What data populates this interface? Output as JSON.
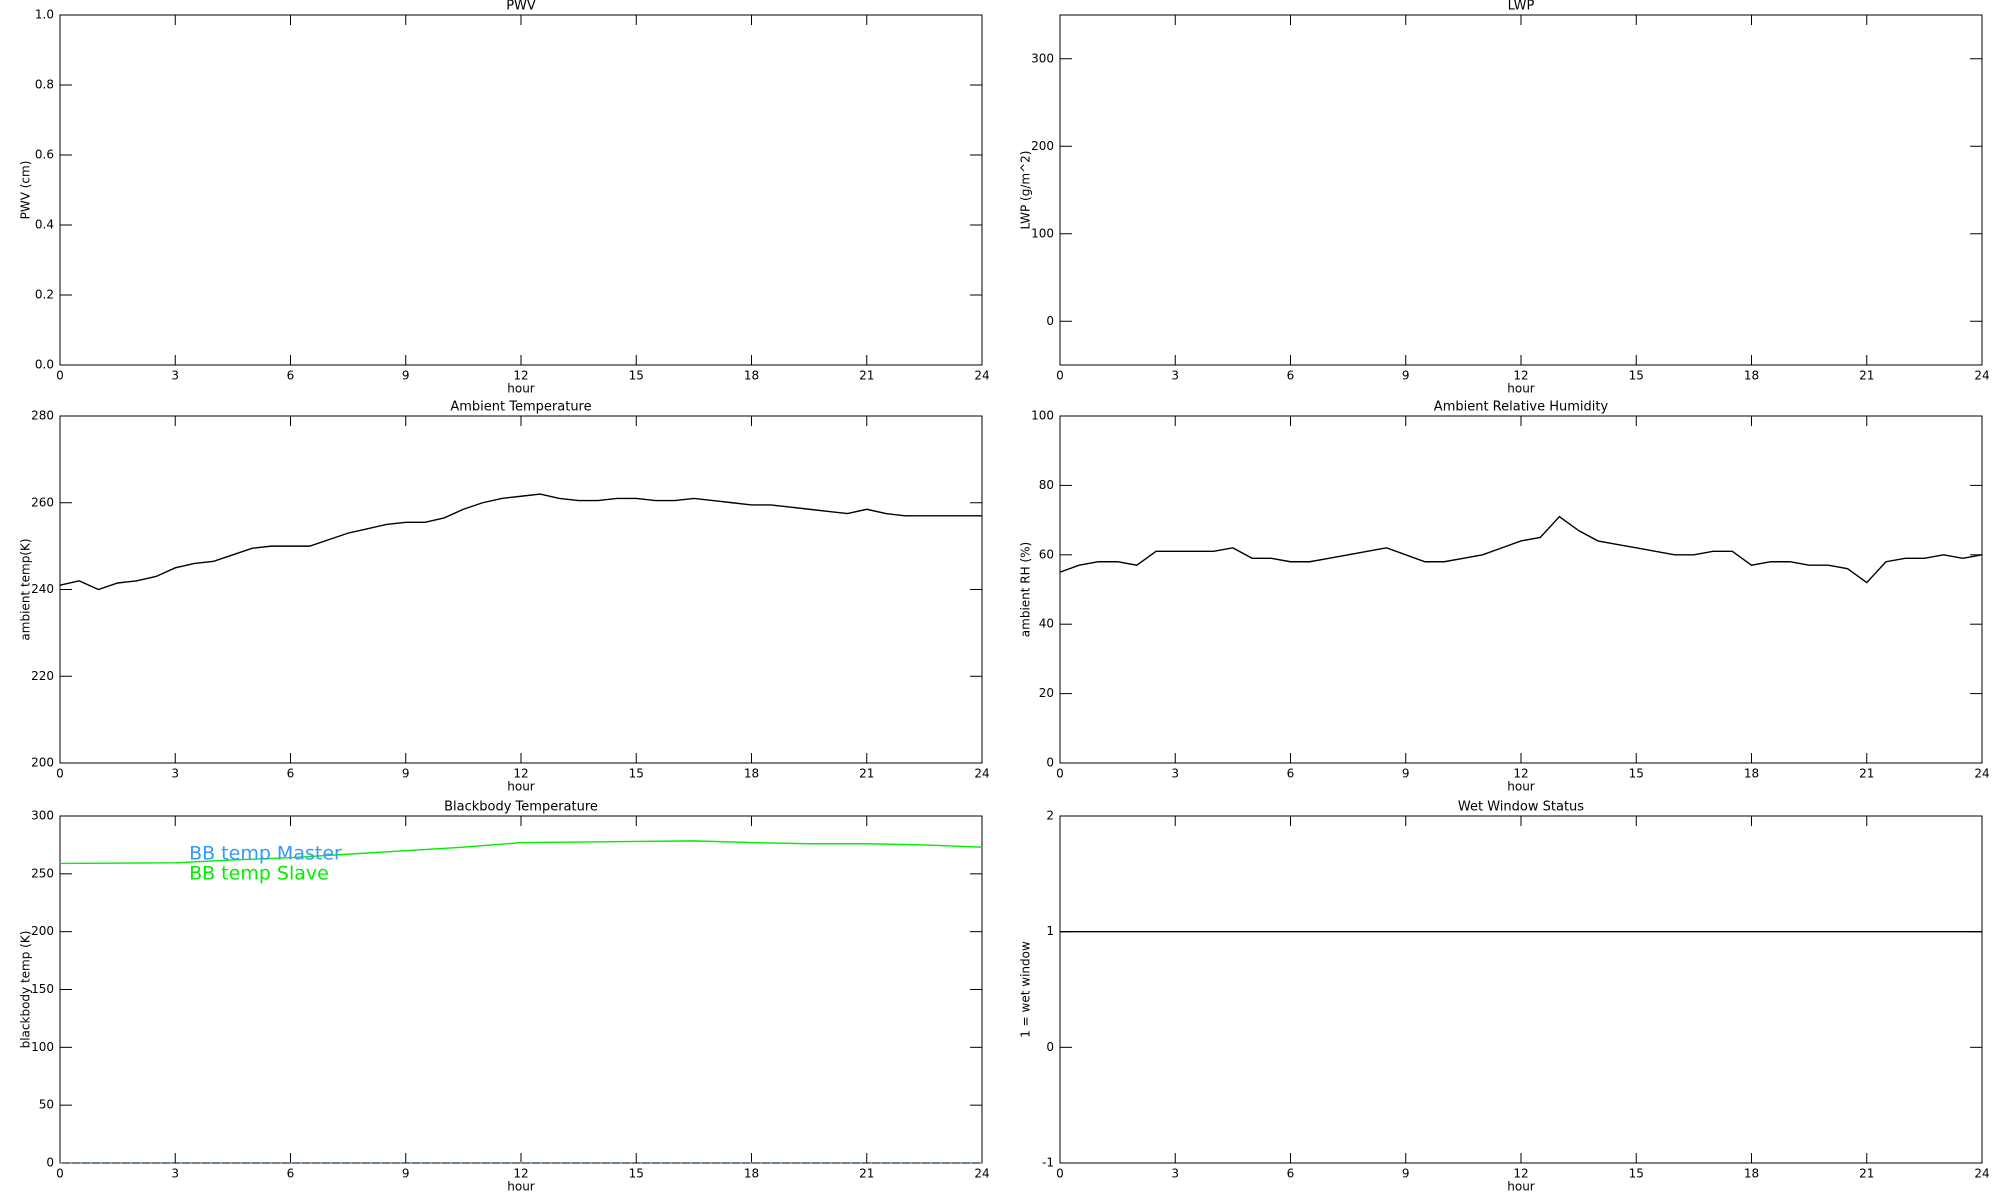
{
  "chart_data": [
    {
      "type": "line",
      "title": "PWV",
      "xlabel": "hour",
      "ylabel": "PWV (cm)",
      "xlim": [
        0,
        24
      ],
      "xticks": [
        0,
        3,
        6,
        9,
        12,
        15,
        18,
        21,
        24
      ],
      "ylim": [
        0,
        1
      ],
      "yticks": [
        {
          "value": 0,
          "label": "0.0"
        },
        0.2,
        0.4,
        0.6,
        0.8,
        {
          "value": 1,
          "label": "1.0"
        }
      ],
      "x": [],
      "series": []
    },
    {
      "type": "line",
      "title": "LWP",
      "xlabel": "hour",
      "ylabel": "LWP (g/m^2)",
      "xlim": [
        0,
        24
      ],
      "xticks": [
        0,
        3,
        6,
        9,
        12,
        15,
        18,
        21,
        24
      ],
      "ylim": [
        -50,
        350
      ],
      "yticks": [
        0,
        100,
        200,
        300
      ],
      "x": [],
      "series": []
    },
    {
      "type": "line",
      "title": "Ambient Temperature",
      "xlabel": "hour",
      "ylabel": "ambient temp(K)",
      "xlim": [
        0,
        24
      ],
      "xticks": [
        0,
        3,
        6,
        9,
        12,
        15,
        18,
        21,
        24
      ],
      "ylim": [
        200,
        280
      ],
      "yticks": [
        200,
        220,
        240,
        260,
        280
      ],
      "x": [
        0,
        0.5,
        1,
        1.5,
        2,
        2.5,
        3,
        3.5,
        4,
        4.5,
        5,
        5.5,
        6,
        6.5,
        7,
        7.5,
        8,
        8.5,
        9,
        9.5,
        10,
        10.5,
        11,
        11.5,
        12,
        12.5,
        13,
        13.5,
        14,
        14.5,
        15,
        15.5,
        16,
        16.5,
        17,
        17.5,
        18,
        18.5,
        19,
        19.5,
        20,
        20.5,
        21,
        21.5,
        22,
        22.5,
        23,
        23.5,
        24
      ],
      "series": [
        {
          "color": "#000000",
          "values": [
            241,
            242,
            240,
            241.5,
            242,
            243,
            245,
            246,
            246.5,
            248,
            249.5,
            250,
            250,
            250,
            251.5,
            253,
            254,
            255,
            255.5,
            255.5,
            256.5,
            258.5,
            260,
            261,
            261.5,
            262,
            261,
            260.5,
            260.5,
            261,
            261,
            260.5,
            260.5,
            261,
            260.5,
            260,
            259.5,
            259.5,
            259,
            258.5,
            258,
            257.5,
            258.5,
            257.5,
            257,
            257,
            257,
            257,
            257
          ]
        }
      ]
    },
    {
      "type": "line",
      "title": "Ambient Relative Humidity",
      "xlabel": "hour",
      "ylabel": "ambient RH (%)",
      "xlim": [
        0,
        24
      ],
      "xticks": [
        0,
        3,
        6,
        9,
        12,
        15,
        18,
        21,
        24
      ],
      "ylim": [
        0,
        100
      ],
      "yticks": [
        0,
        20,
        40,
        60,
        80,
        100
      ],
      "x": [
        0,
        0.5,
        1,
        1.5,
        2,
        2.5,
        3,
        3.5,
        4,
        4.5,
        5,
        5.5,
        6,
        6.5,
        7,
        7.5,
        8,
        8.5,
        9,
        9.5,
        10,
        10.5,
        11,
        11.5,
        12,
        12.5,
        13,
        13.5,
        14,
        14.5,
        15,
        15.5,
        16,
        16.5,
        17,
        17.5,
        18,
        18.5,
        19,
        19.5,
        20,
        20.5,
        21,
        21.5,
        22,
        22.5,
        23,
        23.5,
        24
      ],
      "series": [
        {
          "color": "#000000",
          "values": [
            55,
            57,
            58,
            58,
            57,
            61,
            61,
            61,
            61,
            62,
            59,
            59,
            58,
            58,
            59,
            60,
            61,
            62,
            60,
            58,
            58,
            59,
            60,
            62,
            64,
            65,
            71,
            67,
            64,
            63,
            62,
            61,
            60,
            60,
            61,
            61,
            57,
            58,
            58,
            57,
            57,
            56,
            52,
            58,
            59,
            59,
            60,
            59,
            60
          ]
        }
      ]
    },
    {
      "type": "line",
      "title": "Blackbody Temperature",
      "xlabel": "hour",
      "ylabel": "blackbody temp (K)",
      "xlim": [
        0,
        24
      ],
      "xticks": [
        0,
        3,
        6,
        9,
        12,
        15,
        18,
        21,
        24
      ],
      "ylim": [
        0,
        300
      ],
      "yticks": [
        0,
        50,
        100,
        150,
        200,
        250,
        300
      ],
      "legend": "upper left",
      "x": [
        0,
        3,
        4.5,
        6,
        9,
        10.5,
        12,
        13.5,
        15,
        16.5,
        18,
        19.5,
        21,
        22.5,
        24
      ],
      "series": [
        {
          "name": "BB temp Master",
          "color": "#3399ff",
          "values": [
            0,
            0,
            0,
            0,
            0,
            0,
            0,
            0,
            0,
            0,
            0,
            0,
            0,
            0,
            0
          ]
        },
        {
          "name": "BB temp Slave",
          "color": "#00ee00",
          "values": [
            259,
            259.5,
            262,
            264,
            270,
            273,
            277,
            277.5,
            278,
            278.5,
            277,
            276,
            276,
            275,
            273
          ]
        }
      ]
    },
    {
      "type": "line",
      "title": "Wet Window Status",
      "xlabel": "hour",
      "ylabel": "1 = wet window",
      "xlim": [
        0,
        24
      ],
      "xticks": [
        0,
        3,
        6,
        9,
        12,
        15,
        18,
        21,
        24
      ],
      "ylim": [
        -1,
        2
      ],
      "yticks": [
        -1,
        0,
        1,
        2
      ],
      "x": [
        0,
        24
      ],
      "series": [
        {
          "color": "#000000",
          "values": [
            1,
            1
          ]
        }
      ]
    }
  ]
}
